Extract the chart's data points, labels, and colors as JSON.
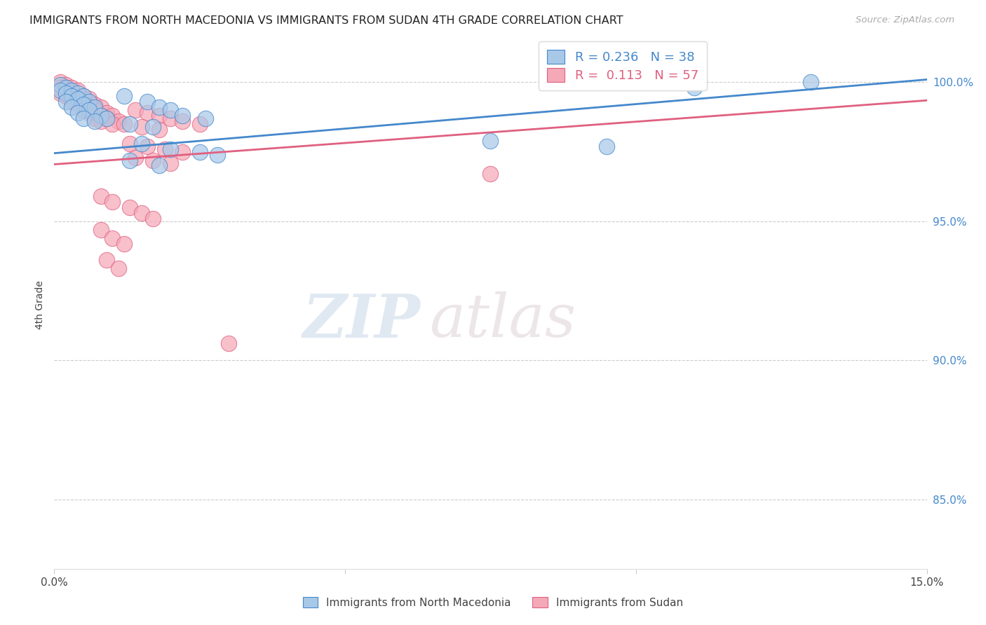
{
  "title": "IMMIGRANTS FROM NORTH MACEDONIA VS IMMIGRANTS FROM SUDAN 4TH GRADE CORRELATION CHART",
  "source": "Source: ZipAtlas.com",
  "ylabel": "4th Grade",
  "x_min": 0.0,
  "x_max": 0.15,
  "y_min": 0.825,
  "y_max": 1.015,
  "x_ticks": [
    0.0,
    0.05,
    0.1,
    0.15
  ],
  "y_ticks": [
    0.85,
    0.9,
    0.95,
    1.0
  ],
  "y_tick_labels": [
    "85.0%",
    "90.0%",
    "95.0%",
    "100.0%"
  ],
  "color_blue": "#a8c8e8",
  "color_pink": "#f4a8b8",
  "color_line_blue": "#4488cc",
  "color_line_pink": "#e06080",
  "legend_R_blue": "R = 0.236",
  "legend_N_blue": "N = 38",
  "legend_R_pink": "R =  0.113",
  "legend_N_pink": "N = 57",
  "legend_label_blue": "Immigrants from North Macedonia",
  "legend_label_pink": "Immigrants from Sudan",
  "watermark_zip": "ZIP",
  "watermark_atlas": "atlas",
  "blue_line": [
    [
      0.0,
      0.9745
    ],
    [
      0.15,
      1.001
    ]
  ],
  "pink_line": [
    [
      0.0,
      0.9705
    ],
    [
      0.15,
      0.9935
    ]
  ],
  "blue_points": [
    [
      0.001,
      0.999
    ],
    [
      0.002,
      0.998
    ],
    [
      0.001,
      0.997
    ],
    [
      0.003,
      0.997
    ],
    [
      0.002,
      0.996
    ],
    [
      0.004,
      0.996
    ],
    [
      0.003,
      0.995
    ],
    [
      0.005,
      0.995
    ],
    [
      0.004,
      0.994
    ],
    [
      0.002,
      0.993
    ],
    [
      0.006,
      0.993
    ],
    [
      0.005,
      0.992
    ],
    [
      0.003,
      0.991
    ],
    [
      0.007,
      0.991
    ],
    [
      0.006,
      0.99
    ],
    [
      0.004,
      0.989
    ],
    [
      0.008,
      0.988
    ],
    [
      0.005,
      0.987
    ],
    [
      0.009,
      0.987
    ],
    [
      0.007,
      0.986
    ],
    [
      0.012,
      0.995
    ],
    [
      0.016,
      0.993
    ],
    [
      0.018,
      0.991
    ],
    [
      0.02,
      0.99
    ],
    [
      0.013,
      0.985
    ],
    [
      0.017,
      0.984
    ],
    [
      0.022,
      0.988
    ],
    [
      0.026,
      0.987
    ],
    [
      0.015,
      0.978
    ],
    [
      0.02,
      0.976
    ],
    [
      0.025,
      0.975
    ],
    [
      0.028,
      0.974
    ],
    [
      0.013,
      0.972
    ],
    [
      0.018,
      0.97
    ],
    [
      0.13,
      1.0
    ],
    [
      0.11,
      0.998
    ],
    [
      0.075,
      0.979
    ],
    [
      0.095,
      0.977
    ]
  ],
  "pink_points": [
    [
      0.001,
      1.0
    ],
    [
      0.002,
      0.999
    ],
    [
      0.001,
      0.998
    ],
    [
      0.003,
      0.998
    ],
    [
      0.002,
      0.997
    ],
    [
      0.004,
      0.997
    ],
    [
      0.001,
      0.996
    ],
    [
      0.003,
      0.996
    ],
    [
      0.005,
      0.995
    ],
    [
      0.002,
      0.995
    ],
    [
      0.004,
      0.994
    ],
    [
      0.006,
      0.994
    ],
    [
      0.003,
      0.993
    ],
    [
      0.005,
      0.993
    ],
    [
      0.007,
      0.992
    ],
    [
      0.004,
      0.992
    ],
    [
      0.006,
      0.991
    ],
    [
      0.008,
      0.991
    ],
    [
      0.005,
      0.99
    ],
    [
      0.007,
      0.99
    ],
    [
      0.009,
      0.989
    ],
    [
      0.006,
      0.989
    ],
    [
      0.008,
      0.988
    ],
    [
      0.01,
      0.988
    ],
    [
      0.007,
      0.987
    ],
    [
      0.009,
      0.987
    ],
    [
      0.011,
      0.986
    ],
    [
      0.008,
      0.986
    ],
    [
      0.01,
      0.985
    ],
    [
      0.012,
      0.985
    ],
    [
      0.014,
      0.99
    ],
    [
      0.016,
      0.989
    ],
    [
      0.018,
      0.988
    ],
    [
      0.02,
      0.987
    ],
    [
      0.022,
      0.986
    ],
    [
      0.025,
      0.985
    ],
    [
      0.015,
      0.984
    ],
    [
      0.018,
      0.983
    ],
    [
      0.013,
      0.978
    ],
    [
      0.016,
      0.977
    ],
    [
      0.019,
      0.976
    ],
    [
      0.022,
      0.975
    ],
    [
      0.014,
      0.973
    ],
    [
      0.017,
      0.972
    ],
    [
      0.02,
      0.971
    ],
    [
      0.008,
      0.959
    ],
    [
      0.01,
      0.957
    ],
    [
      0.013,
      0.955
    ],
    [
      0.015,
      0.953
    ],
    [
      0.017,
      0.951
    ],
    [
      0.008,
      0.947
    ],
    [
      0.01,
      0.944
    ],
    [
      0.012,
      0.942
    ],
    [
      0.009,
      0.936
    ],
    [
      0.011,
      0.933
    ],
    [
      0.03,
      0.906
    ],
    [
      0.075,
      0.967
    ]
  ]
}
